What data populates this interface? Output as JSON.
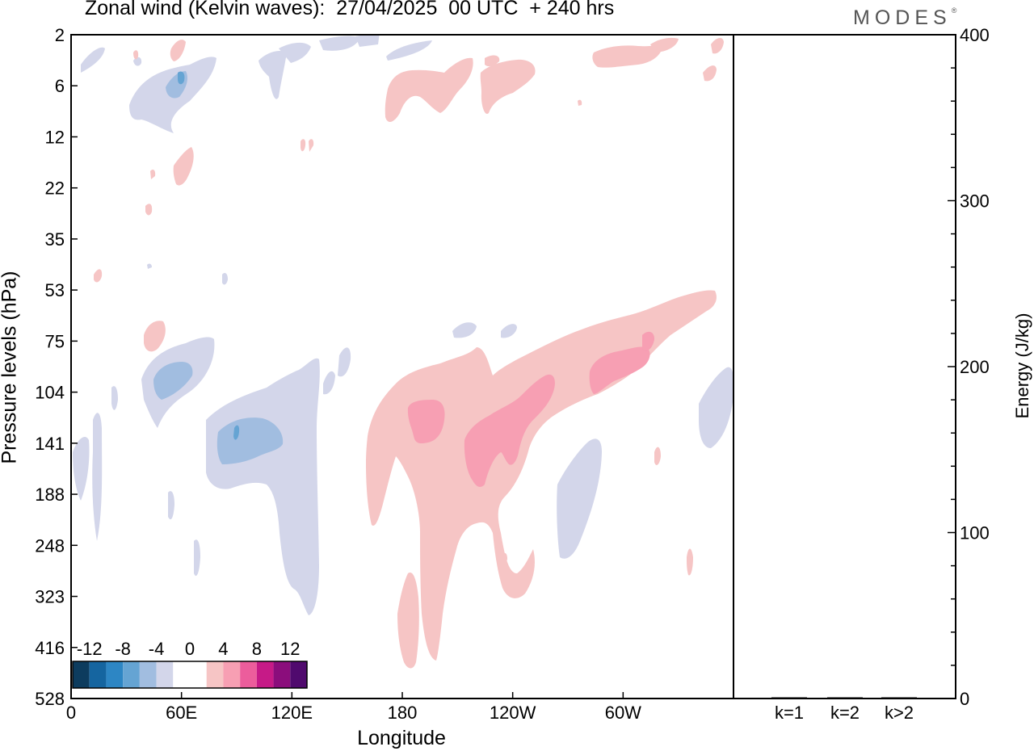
{
  "header": {
    "title": "Zonal wind (Kelvin waves):  27/04/2025  00 UTC  + 240 hrs",
    "brand": "MODES"
  },
  "chart_data": [
    {
      "type": "heatmap",
      "title": "Zonal wind (Kelvin waves):  27/04/2025  00 UTC  + 240 hrs",
      "xlabel": "Longitude",
      "ylabel": "Pressure levels (hPa)",
      "x_ticks": [
        "0",
        "60E",
        "120E",
        "180",
        "120W",
        "60W"
      ],
      "x_range_deg": [
        0,
        360
      ],
      "y_ticks": [
        2,
        6,
        12,
        22,
        35,
        53,
        75,
        104,
        141,
        188,
        248,
        323,
        416,
        528
      ],
      "y_axis": "pressure levels, top = 2 hPa, bottom = 528 hPa",
      "colorbar": {
        "labels": [
          "-12",
          "-8",
          "-4",
          "0",
          "4",
          "8",
          "12"
        ],
        "colors": [
          "#0d3c5e",
          "#1565a0",
          "#2d86c4",
          "#65a4d3",
          "#a1bde0",
          "#d3d6ea",
          "#ffffff",
          "#ffffff",
          "#f6c5c5",
          "#f79fb3",
          "#ec5d9c",
          "#c61a87",
          "#8b0d7c",
          "#500a6e"
        ]
      },
      "features": [
        {
          "sign": "negative",
          "max_abs": 12,
          "lon_range": [
            50,
            145
          ],
          "levels": "75–323 hPa"
        },
        {
          "sign": "positive",
          "max_abs": 8,
          "lon_range": [
            160,
            315
          ],
          "levels": "53–416 hPa"
        },
        {
          "sign": "positive",
          "max_abs": 8,
          "lon_range": [
            170,
            290
          ],
          "levels": "2–12 hPa"
        },
        {
          "sign": "negative",
          "max_abs": 8,
          "lon_range": [
            10,
            90
          ],
          "levels": "2–12 hPa"
        }
      ]
    },
    {
      "type": "bar",
      "ylabel": "Energy (J/kg)",
      "categories": [
        "k=1",
        "k=2",
        "k>2"
      ],
      "values": [
        0.5,
        0.3,
        0.3
      ],
      "ylim": [
        0,
        400
      ],
      "y_ticks": [
        0,
        100,
        200,
        300,
        400
      ]
    }
  ]
}
